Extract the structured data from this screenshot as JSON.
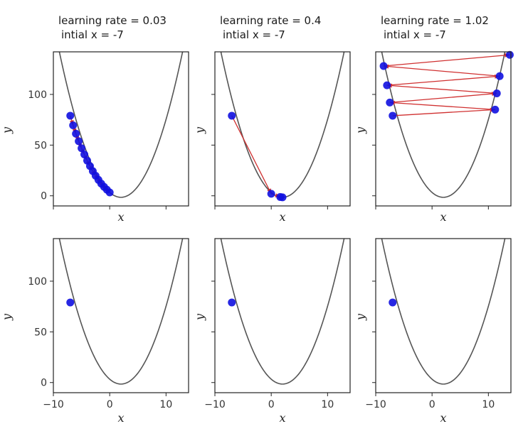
{
  "chart_data": [
    {
      "type": "line",
      "panel": "top-left",
      "title_line1": "learning rate = 0.03",
      "title_line2": "intial x = -7",
      "xlabel": "x",
      "ylabel": "y",
      "xlim": [
        -10,
        14
      ],
      "ylim": [
        -10,
        142
      ],
      "xticks": [
        -10,
        0,
        10
      ],
      "yticks": [
        0,
        50,
        100
      ],
      "show_xtick_labels": false,
      "show_ytick_labels": true,
      "curve": {
        "a": 1.2,
        "h": 2.0,
        "k": -1.5,
        "x_range": [
          -10,
          14
        ],
        "color": "#555555"
      },
      "point_color": "#1010e0",
      "arrow_color": "#d03030",
      "points": [
        {
          "x": -7.0,
          "y": 79.0
        },
        {
          "x": -6.5,
          "y": 69.5
        },
        {
          "x": -6.0,
          "y": 61.3
        },
        {
          "x": -5.5,
          "y": 53.8
        },
        {
          "x": -5.0,
          "y": 46.9
        },
        {
          "x": -4.5,
          "y": 40.8
        },
        {
          "x": -4.0,
          "y": 34.7
        },
        {
          "x": -3.5,
          "y": 29.3
        },
        {
          "x": -3.0,
          "y": 24.3
        },
        {
          "x": -2.5,
          "y": 19.8
        },
        {
          "x": -2.0,
          "y": 15.7
        },
        {
          "x": -1.5,
          "y": 12.0
        },
        {
          "x": -1.0,
          "y": 8.8
        },
        {
          "x": -0.5,
          "y": 6.0
        },
        {
          "x": 0.0,
          "y": 3.3
        }
      ]
    },
    {
      "type": "line",
      "panel": "top-middle",
      "title_line1": "learning rate = 0.4",
      "title_line2": "intial x = -7",
      "xlabel": "x",
      "ylabel": "y",
      "xlim": [
        -10,
        14
      ],
      "ylim": [
        -10,
        142
      ],
      "xticks": [
        -10,
        0,
        10
      ],
      "yticks": [
        0,
        50,
        100
      ],
      "show_xtick_labels": false,
      "show_ytick_labels": false,
      "curve": {
        "a": 1.2,
        "h": 2.0,
        "k": -1.5,
        "x_range": [
          -10,
          14
        ],
        "color": "#555555"
      },
      "point_color": "#1010e0",
      "arrow_color": "#d03030",
      "points": [
        {
          "x": -7.0,
          "y": 79.0
        },
        {
          "x": 0.0,
          "y": 2.0
        },
        {
          "x": 1.6,
          "y": -1.2
        },
        {
          "x": 2.0,
          "y": -1.5
        }
      ]
    },
    {
      "type": "line",
      "panel": "top-right",
      "title_line1": "learning rate = 1.02",
      "title_line2": "intial x = -7",
      "xlabel": "x",
      "ylabel": "y",
      "xlim": [
        -10,
        14
      ],
      "ylim": [
        -10,
        142
      ],
      "xticks": [
        -10,
        0,
        10
      ],
      "yticks": [
        0,
        50,
        100
      ],
      "show_xtick_labels": false,
      "show_ytick_labels": false,
      "curve": {
        "a": 1.2,
        "h": 2.0,
        "k": -1.5,
        "x_range": [
          -10,
          14
        ],
        "color": "#555555"
      },
      "point_color": "#1010e0",
      "arrow_color": "#d03030",
      "points": [
        {
          "x": -7.0,
          "y": 79.0
        },
        {
          "x": 11.2,
          "y": 85.0
        },
        {
          "x": -7.5,
          "y": 92.0
        },
        {
          "x": 11.5,
          "y": 101.0
        },
        {
          "x": -8.0,
          "y": 109.0
        },
        {
          "x": 12.0,
          "y": 118.0
        },
        {
          "x": -8.6,
          "y": 128.0
        },
        {
          "x": 13.8,
          "y": 139.0
        }
      ]
    },
    {
      "type": "line",
      "panel": "bottom-left",
      "title_line1": "",
      "title_line2": "",
      "xlabel": "x",
      "ylabel": "y",
      "xlim": [
        -10,
        14
      ],
      "ylim": [
        -10,
        142
      ],
      "xticks": [
        -10,
        0,
        10
      ],
      "yticks": [
        0,
        50,
        100
      ],
      "show_xtick_labels": true,
      "show_ytick_labels": true,
      "curve": {
        "a": 1.2,
        "h": 2.0,
        "k": -1.5,
        "x_range": [
          -10,
          14
        ],
        "color": "#555555"
      },
      "point_color": "#1010e0",
      "arrow_color": "#d03030",
      "points": [
        {
          "x": -7.0,
          "y": 79.0
        }
      ]
    },
    {
      "type": "line",
      "panel": "bottom-middle",
      "title_line1": "",
      "title_line2": "",
      "xlabel": "x",
      "ylabel": "y",
      "xlim": [
        -10,
        14
      ],
      "ylim": [
        -10,
        142
      ],
      "xticks": [
        -10,
        0,
        10
      ],
      "yticks": [
        0,
        50,
        100
      ],
      "show_xtick_labels": true,
      "show_ytick_labels": false,
      "curve": {
        "a": 1.2,
        "h": 2.0,
        "k": -1.5,
        "x_range": [
          -10,
          14
        ],
        "color": "#555555"
      },
      "point_color": "#1010e0",
      "arrow_color": "#d03030",
      "points": [
        {
          "x": -7.0,
          "y": 79.0
        }
      ]
    },
    {
      "type": "line",
      "panel": "bottom-right",
      "title_line1": "",
      "title_line2": "",
      "xlabel": "x",
      "ylabel": "y",
      "xlim": [
        -10,
        14
      ],
      "ylim": [
        -10,
        142
      ],
      "xticks": [
        -10,
        0,
        10
      ],
      "yticks": [
        0,
        50,
        100
      ],
      "show_xtick_labels": true,
      "show_ytick_labels": false,
      "curve": {
        "a": 1.2,
        "h": 2.0,
        "k": -1.5,
        "x_range": [
          -10,
          14
        ],
        "color": "#555555"
      },
      "point_color": "#1010e0",
      "arrow_color": "#d03030",
      "points": [
        {
          "x": -7.0,
          "y": 79.0
        }
      ]
    }
  ]
}
